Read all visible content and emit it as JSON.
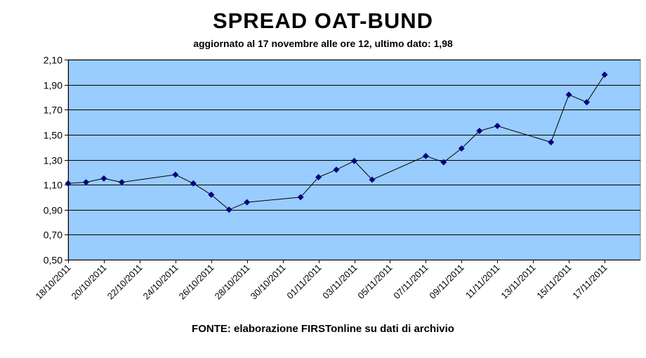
{
  "chart_data": {
    "type": "line",
    "title": "SPREAD OAT-BUND",
    "subtitle": "aggiornato al 17 novembre alle ore 12, ultimo dato: 1,98",
    "source": "FONTE: elaborazione FIRSTonline su dati di archivio",
    "xlabel": "",
    "ylabel": "",
    "ylim": [
      0.5,
      2.1
    ],
    "xlim": [
      "2011-10-18",
      "2011-11-19"
    ],
    "grid": true,
    "legend": "none",
    "plot_color": "#99CCFF",
    "line_color": "#000000",
    "marker_color": "#000080",
    "y_ticks": [
      "0,50",
      "0,70",
      "0,90",
      "1,10",
      "1,30",
      "1,50",
      "1,70",
      "1,90",
      "2,10"
    ],
    "y_tick_values": [
      0.5,
      0.7,
      0.9,
      1.1,
      1.3,
      1.5,
      1.7,
      1.9,
      2.1
    ],
    "x_ticks": [
      "18/10/2011",
      "20/10/2011",
      "22/10/2011",
      "24/10/2011",
      "26/10/2011",
      "28/10/2011",
      "30/10/2011",
      "01/11/2011",
      "03/11/2011",
      "05/11/2011",
      "07/11/2011",
      "09/11/2011",
      "11/11/2011",
      "13/11/2011",
      "15/11/2011",
      "17/11/2011"
    ],
    "x_tick_dates": [
      "2011-10-18",
      "2011-10-20",
      "2011-10-22",
      "2011-10-24",
      "2011-10-26",
      "2011-10-28",
      "2011-10-30",
      "2011-11-01",
      "2011-11-03",
      "2011-11-05",
      "2011-11-07",
      "2011-11-09",
      "2011-11-11",
      "2011-11-13",
      "2011-11-15",
      "2011-11-17"
    ],
    "series": [
      {
        "x": [
          "2011-10-18",
          "2011-10-19",
          "2011-10-20",
          "2011-10-21",
          "2011-10-24",
          "2011-10-25",
          "2011-10-26",
          "2011-10-27",
          "2011-10-28",
          "2011-10-31",
          "2011-11-01",
          "2011-11-02",
          "2011-11-03",
          "2011-11-04",
          "2011-11-07",
          "2011-11-08",
          "2011-11-09",
          "2011-11-10",
          "2011-11-11",
          "2011-11-14",
          "2011-11-15",
          "2011-11-16",
          "2011-11-17"
        ],
        "values": [
          1.11,
          1.12,
          1.15,
          1.12,
          1.18,
          1.11,
          1.02,
          0.9,
          0.96,
          1.0,
          1.16,
          1.22,
          1.29,
          1.14,
          1.33,
          1.28,
          1.39,
          1.53,
          1.57,
          1.44,
          1.82,
          1.76,
          1.98
        ]
      }
    ]
  }
}
